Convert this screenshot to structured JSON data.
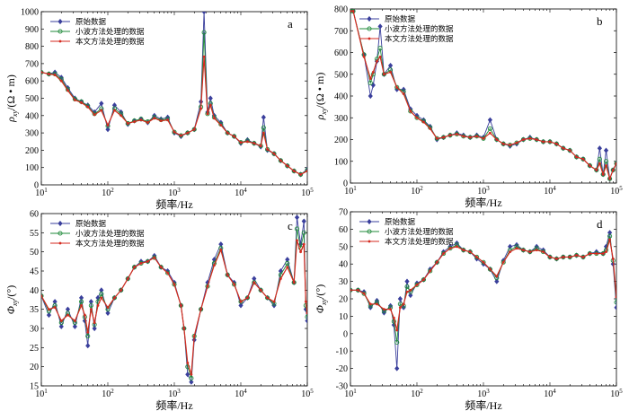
{
  "colors": {
    "original": "#3a3f9c",
    "wavelet": "#1f8a3a",
    "proposed": "#d42a1f"
  },
  "legend": [
    "原始数据",
    "小波方法处理的数据",
    "本文方法处理的数据"
  ],
  "chart_data": [
    {
      "id": "a",
      "type": "line",
      "xscale": "log",
      "xlim": [
        10,
        100000
      ],
      "ylim": [
        0,
        1000
      ],
      "yticks": [
        0,
        100,
        200,
        300,
        400,
        500,
        600,
        700,
        800,
        900,
        1000
      ],
      "xticks": [
        "10^1",
        "10^2",
        "10^3",
        "10^4",
        "10^5"
      ],
      "xlabel": "频率/Hz",
      "ylabel": "ρxy/(Ω·m)",
      "ylabel_main": "ρ",
      "ylabel_sub": "xy",
      "ylabel_unit": "/(Ω • m)",
      "panel_label": "a",
      "legend_position": "top-left",
      "x": [
        10,
        13,
        16,
        20,
        25,
        32,
        40,
        50,
        63,
        80,
        100,
        126,
        158,
        200,
        251,
        316,
        398,
        501,
        631,
        794,
        1000,
        1259,
        1585,
        1995,
        2512,
        2800,
        3162,
        3500,
        3981,
        5012,
        6310,
        7943,
        10000,
        12589,
        15849,
        19953,
        22000,
        25119,
        31623,
        39811,
        50119,
        63096,
        79433,
        100000
      ],
      "series": [
        {
          "name": "原始数据",
          "values": [
            650,
            640,
            650,
            620,
            560,
            500,
            480,
            460,
            420,
            470,
            320,
            460,
            420,
            350,
            370,
            380,
            360,
            400,
            380,
            390,
            300,
            280,
            300,
            320,
            480,
            1000,
            420,
            500,
            400,
            360,
            300,
            280,
            240,
            260,
            240,
            220,
            390,
            200,
            180,
            140,
            110,
            80,
            60,
            90
          ]
        },
        {
          "name": "小波方法处理的数据",
          "values": [
            650,
            640,
            640,
            610,
            550,
            495,
            480,
            455,
            410,
            440,
            340,
            440,
            410,
            355,
            370,
            380,
            365,
            390,
            375,
            380,
            305,
            285,
            300,
            320,
            450,
            880,
            410,
            470,
            390,
            350,
            300,
            280,
            245,
            255,
            240,
            225,
            330,
            205,
            180,
            140,
            110,
            80,
            60,
            85
          ]
        },
        {
          "name": "本文方法处理的数据",
          "values": [
            650,
            640,
            635,
            600,
            545,
            490,
            475,
            450,
            405,
            430,
            345,
            430,
            400,
            355,
            365,
            375,
            360,
            385,
            370,
            375,
            305,
            285,
            300,
            320,
            440,
            740,
            410,
            460,
            385,
            345,
            300,
            280,
            245,
            250,
            240,
            225,
            300,
            205,
            180,
            140,
            110,
            80,
            60,
            80
          ]
        }
      ]
    },
    {
      "id": "b",
      "type": "line",
      "xscale": "log",
      "xlim": [
        10,
        100000
      ],
      "ylim": [
        0,
        800
      ],
      "yticks": [
        0,
        100,
        200,
        300,
        400,
        500,
        600,
        700,
        800
      ],
      "xticks": [
        "10^1",
        "10^2",
        "10^3",
        "10^4",
        "10^5"
      ],
      "xlabel": "频率/Hz",
      "ylabel": "ρxy/(Ω·m)",
      "ylabel_main": "ρ",
      "ylabel_sub": "xy",
      "ylabel_unit": "/(Ω • m)",
      "panel_label": "b",
      "legend_position": "top-left",
      "x": [
        10,
        11,
        16,
        20,
        22,
        25,
        28,
        32,
        40,
        50,
        63,
        80,
        100,
        126,
        158,
        200,
        251,
        316,
        398,
        501,
        631,
        794,
        1000,
        1259,
        1585,
        1995,
        2512,
        3162,
        3981,
        5012,
        6310,
        7943,
        10000,
        12589,
        15849,
        19953,
        25119,
        31623,
        39811,
        50119,
        56000,
        63096,
        70000,
        79433,
        89000,
        100000
      ],
      "series": [
        {
          "name": "原始数据",
          "values": [
            790,
            790,
            590,
            400,
            450,
            560,
            720,
            500,
            540,
            430,
            430,
            340,
            310,
            290,
            260,
            200,
            210,
            220,
            230,
            220,
            210,
            220,
            210,
            290,
            200,
            180,
            170,
            180,
            200,
            210,
            200,
            190,
            190,
            180,
            160,
            150,
            120,
            110,
            80,
            60,
            160,
            40,
            150,
            20,
            60,
            90
          ]
        },
        {
          "name": "小波方法处理的数据",
          "values": [
            790,
            790,
            590,
            460,
            500,
            570,
            620,
            500,
            520,
            440,
            420,
            330,
            300,
            285,
            255,
            205,
            210,
            220,
            225,
            215,
            210,
            215,
            205,
            250,
            200,
            180,
            175,
            185,
            200,
            205,
            200,
            190,
            190,
            180,
            160,
            150,
            120,
            110,
            80,
            60,
            110,
            40,
            100,
            20,
            60,
            90
          ]
        },
        {
          "name": "本文方法处理的数据",
          "values": [
            790,
            790,
            580,
            480,
            510,
            560,
            580,
            500,
            510,
            440,
            410,
            330,
            300,
            280,
            250,
            205,
            210,
            220,
            225,
            215,
            210,
            215,
            205,
            230,
            200,
            180,
            175,
            185,
            200,
            205,
            200,
            190,
            190,
            180,
            160,
            150,
            120,
            110,
            80,
            60,
            90,
            40,
            80,
            20,
            60,
            90
          ]
        }
      ]
    },
    {
      "id": "c",
      "type": "line",
      "xscale": "log",
      "xlim": [
        10,
        100000
      ],
      "ylim": [
        15,
        60
      ],
      "yticks": [
        15,
        20,
        25,
        30,
        35,
        40,
        45,
        50,
        55,
        60
      ],
      "xticks": [
        "10^1",
        "10^2",
        "10^3",
        "10^4",
        "10^5"
      ],
      "xlabel": "频率/Hz",
      "ylabel": "Φxy/(°)",
      "ylabel_main": "Φ",
      "ylabel_sub": "xy",
      "ylabel_unit": "/(°)",
      "panel_label": "c",
      "legend_position": "top-left",
      "x": [
        10,
        13,
        16,
        20,
        25,
        32,
        40,
        45,
        50,
        56,
        63,
        71,
        80,
        100,
        126,
        158,
        200,
        251,
        316,
        398,
        501,
        631,
        794,
        1000,
        1259,
        1400,
        1585,
        1800,
        1995,
        2512,
        3162,
        3981,
        5012,
        6310,
        7943,
        10000,
        12589,
        15849,
        19953,
        25119,
        31623,
        39811,
        50119,
        63096,
        70000,
        79433,
        89000,
        95000,
        100000
      ],
      "series": [
        {
          "name": "原始数据",
          "values": [
            38.5,
            33.5,
            37,
            30.5,
            35,
            30.5,
            38,
            32,
            25.5,
            37,
            30,
            38,
            40,
            34,
            38,
            40,
            43,
            46,
            47.5,
            47.5,
            49,
            46,
            45,
            42,
            36,
            30,
            18,
            16,
            27,
            35,
            42,
            48,
            52,
            44,
            42,
            36,
            38,
            43,
            40,
            38,
            36,
            45,
            48,
            42,
            59,
            52,
            58,
            35,
            32
          ]
        },
        {
          "name": "小波方法处理的数据",
          "values": [
            38.5,
            34.5,
            36,
            31.5,
            34,
            31.5,
            37,
            33,
            28,
            36,
            31,
            37,
            39,
            35,
            38,
            40,
            43,
            46,
            47,
            47.5,
            48.5,
            46,
            44.5,
            41.5,
            36,
            30,
            20,
            17,
            28,
            35,
            41,
            47,
            51,
            44,
            41.5,
            37,
            38,
            42,
            40,
            38,
            36.5,
            44,
            47,
            42,
            56,
            51,
            55,
            36,
            33
          ]
        },
        {
          "name": "本文方法处理的数据",
          "values": [
            38.5,
            35,
            35.5,
            32,
            33.5,
            32,
            36,
            33.5,
            29,
            35,
            31.5,
            36,
            38,
            35.5,
            38,
            40,
            43,
            46,
            47,
            47.5,
            48.5,
            46,
            44.5,
            41.5,
            36,
            30,
            21,
            18,
            28,
            35,
            41,
            46.5,
            50.5,
            44,
            41.5,
            37,
            38,
            42,
            40,
            38,
            37,
            43,
            46,
            42,
            53,
            50,
            52,
            37,
            34
          ]
        }
      ]
    },
    {
      "id": "d",
      "type": "line",
      "xscale": "log",
      "xlim": [
        10,
        100000
      ],
      "ylim": [
        -30,
        70
      ],
      "yticks": [
        -30,
        -20,
        -10,
        0,
        10,
        20,
        30,
        40,
        50,
        60,
        70
      ],
      "xticks": [
        "10^1",
        "10^2",
        "10^3",
        "10^4",
        "10^5"
      ],
      "xlabel": "频率/Hz",
      "ylabel": "Φxy/(°)",
      "ylabel_main": "Φ",
      "ylabel_sub": "xy",
      "ylabel_unit": "/(°)",
      "panel_label": "d",
      "legend_position": "top-left",
      "x": [
        10,
        13,
        16,
        20,
        25,
        32,
        40,
        45,
        50,
        56,
        63,
        71,
        80,
        100,
        126,
        158,
        200,
        251,
        316,
        398,
        501,
        631,
        794,
        1000,
        1259,
        1585,
        1995,
        2512,
        3162,
        3981,
        5012,
        6310,
        7943,
        10000,
        12589,
        15849,
        19953,
        25119,
        31623,
        39811,
        50119,
        63096,
        70000,
        79433,
        89000,
        100000
      ],
      "series": [
        {
          "name": "原始数据",
          "values": [
            25,
            25,
            24,
            15,
            19,
            12,
            16,
            5,
            -20,
            20,
            15,
            30,
            22,
            29,
            31,
            37,
            41,
            47,
            50,
            52,
            48,
            47,
            43,
            40,
            37,
            30,
            42,
            50,
            51,
            48,
            47,
            50,
            48,
            44,
            43,
            44,
            44,
            45,
            44,
            46,
            47,
            46,
            50,
            58,
            40,
            15
          ]
        },
        {
          "name": "小波方法处理的数据",
          "values": [
            25,
            25,
            23,
            16,
            18,
            13,
            15,
            7,
            -5,
            17,
            16,
            27,
            24,
            28,
            31,
            36,
            41,
            46,
            49,
            51,
            48,
            47,
            44,
            41,
            37,
            32,
            41,
            48,
            50,
            48,
            47,
            49,
            47,
            44,
            43,
            44,
            44,
            45,
            44,
            46,
            46,
            46,
            48,
            56,
            42,
            18
          ]
        },
        {
          "name": "本文方法处理的数据",
          "values": [
            25,
            25,
            23,
            17,
            17,
            14,
            14,
            9,
            2,
            15,
            17,
            24,
            25,
            28,
            31,
            36,
            41,
            46,
            49,
            50,
            48,
            47,
            44,
            41,
            37,
            33,
            41,
            47,
            49,
            48,
            47,
            48,
            47,
            44,
            43,
            44,
            44,
            45,
            44,
            46,
            46,
            46,
            47,
            54,
            43,
            21
          ]
        }
      ]
    }
  ]
}
